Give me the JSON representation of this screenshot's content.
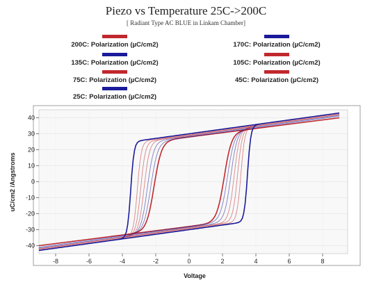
{
  "chart_data": {
    "type": "line",
    "title": "Piezo vs Temperature  25C->200C",
    "subtitle": "[ Radiant Type AC BLUE in Linkam Chamber]",
    "xlabel": "Voltage",
    "ylabel": "uC/cm2 /Angstroms",
    "xlim": [
      -9,
      9.5
    ],
    "ylim": [
      -45,
      45
    ],
    "xticks": [
      -8,
      -6,
      -4,
      -2,
      0,
      2,
      4,
      6,
      8
    ],
    "yticks": [
      -40,
      -30,
      -20,
      -10,
      0,
      10,
      20,
      30,
      40
    ],
    "grid": true,
    "legend_position": "top",
    "series": [
      {
        "name": "200C: Polarization (µC/cm2)",
        "color": "#c0282d",
        "vmax": 9,
        "Pmax": 40,
        "Pr": 28,
        "Vc": 2.1,
        "w": 0.45,
        "k": 1.3
      },
      {
        "name": "170C: Polarization (µC/cm2)",
        "color": "#1a1a9a",
        "vmax": 9,
        "Pmax": 41,
        "Pr": 28,
        "Vc": 2.3,
        "w": 0.42,
        "k": 1.2
      },
      {
        "name": "135C: Polarization (µC/cm2)",
        "color": "#1a1a9a",
        "vmax": 9,
        "Pmax": 41.5,
        "Pr": 28.5,
        "Vc": 2.5,
        "w": 0.38,
        "k": 1.1
      },
      {
        "name": "105C: Polarization (µC/cm2)",
        "color": "#c0282d",
        "vmax": 9,
        "Pmax": 42,
        "Pr": 29,
        "Vc": 2.7,
        "w": 0.33,
        "k": 1.0
      },
      {
        "name": "75C: Polarization (µC/cm2)",
        "color": "#c0282d",
        "vmax": 9,
        "Pmax": 42,
        "Pr": 29,
        "Vc": 2.9,
        "w": 0.28,
        "k": 1.0
      },
      {
        "name": "45C: Polarization (µC/cm2)",
        "color": "#c0282d",
        "vmax": 9,
        "Pmax": 42.5,
        "Pr": 29.5,
        "Vc": 3.1,
        "w": 0.24,
        "k": 1.0
      },
      {
        "name": "25C: Polarization (µC/cm2)",
        "color": "#1a1a9a",
        "vmax": 9,
        "Pmax": 43,
        "Pr": 30,
        "Vc": 3.5,
        "w": 0.2,
        "k": 1.0
      }
    ]
  }
}
